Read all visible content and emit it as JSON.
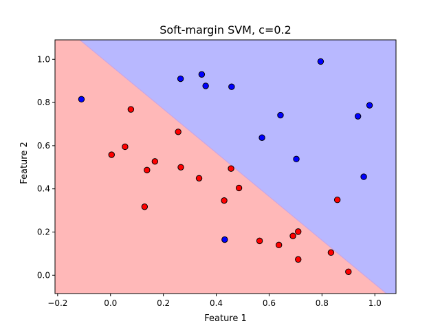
{
  "chart_data": {
    "type": "scatter",
    "title": "Soft-margin SVM, c=0.2",
    "xlabel": "Feature 1",
    "ylabel": "Feature 2",
    "xlim": [
      -0.21,
      1.08
    ],
    "ylim": [
      -0.085,
      1.09
    ],
    "xticks": [
      -0.2,
      0.0,
      0.2,
      0.4,
      0.6,
      0.8,
      1.0
    ],
    "xtick_labels": [
      "−0.2",
      "0.0",
      "0.2",
      "0.4",
      "0.6",
      "0.8",
      "1.0"
    ],
    "yticks": [
      0.0,
      0.2,
      0.4,
      0.6,
      0.8,
      1.0
    ],
    "ytick_labels": [
      "0.0",
      "0.2",
      "0.4",
      "0.6",
      "0.8",
      "1.0"
    ],
    "grid": false,
    "decision_boundary": {
      "description": "linear boundary separating regions",
      "points": [
        [
          -0.116,
          1.09
        ],
        [
          1.044,
          -0.085
        ]
      ]
    },
    "region_colors": {
      "blue": "#b8b8ff",
      "red": "#ffb8b8"
    },
    "series": [
      {
        "color": "#0000ff",
        "points": [
          [
            -0.11,
            0.815
          ],
          [
            0.265,
            0.91
          ],
          [
            0.345,
            0.93
          ],
          [
            0.36,
            0.877
          ],
          [
            0.458,
            0.873
          ],
          [
            0.795,
            0.99
          ],
          [
            0.643,
            0.741
          ],
          [
            0.573,
            0.637
          ],
          [
            0.703,
            0.538
          ],
          [
            0.936,
            0.736
          ],
          [
            0.98,
            0.787
          ],
          [
            0.958,
            0.456
          ],
          [
            0.432,
            0.165
          ]
        ]
      },
      {
        "color": "#ff0000",
        "points": [
          [
            0.077,
            0.768
          ],
          [
            0.256,
            0.664
          ],
          [
            0.055,
            0.595
          ],
          [
            0.004,
            0.558
          ],
          [
            0.168,
            0.527
          ],
          [
            0.138,
            0.487
          ],
          [
            0.266,
            0.5
          ],
          [
            0.335,
            0.449
          ],
          [
            0.456,
            0.494
          ],
          [
            0.486,
            0.404
          ],
          [
            0.43,
            0.346
          ],
          [
            0.129,
            0.317
          ],
          [
            0.564,
            0.159
          ],
          [
            0.637,
            0.14
          ],
          [
            0.69,
            0.182
          ],
          [
            0.71,
            0.202
          ],
          [
            0.71,
            0.073
          ],
          [
            0.834,
            0.105
          ],
          [
            0.858,
            0.349
          ],
          [
            0.9,
            0.016
          ]
        ]
      }
    ]
  }
}
